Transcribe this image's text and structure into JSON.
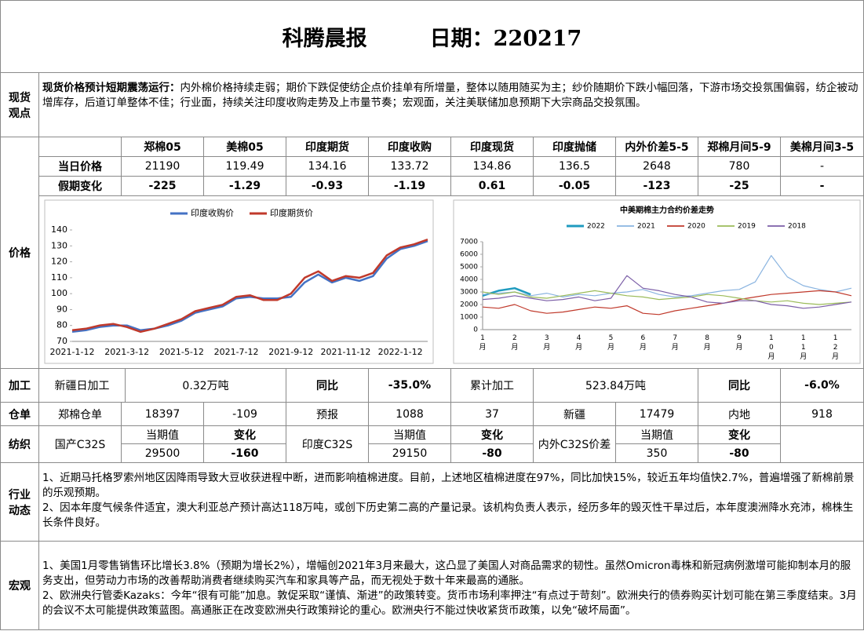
{
  "header": {
    "title": "科腾晨报",
    "date": "日期：220217"
  },
  "spot": {
    "label": "现货观点",
    "heading": "现货价格预计短期震荡运行：",
    "text": "内外棉价格持续走弱；期价下跌促使纺企点价挂单有所增量，整体以随用随买为主；纱价随期价下跌小幅回落，下游市场交投氛围偏弱，纺企被动增库存，后道订单整体不佳；行业面，持续关注印度收购走势及上市量节奏；宏观面，关注美联储加息预期下大宗商品交投氛围。"
  },
  "price_table": {
    "label": "价格",
    "columns": [
      "郑棉05",
      "美棉05",
      "印度期货",
      "印度收购",
      "印度现货",
      "印度抛储",
      "内外价差5-5",
      "郑棉月间5-9",
      "美棉月间3-5"
    ],
    "rows": [
      {
        "name": "当日价格",
        "cells": [
          "21190",
          "119.49",
          "134.16",
          "133.72",
          "134.86",
          "136.5",
          "2648",
          "780",
          "-"
        ]
      },
      {
        "name": "假期变化",
        "cells": [
          "-225",
          "-1.29",
          "-0.93",
          "-1.19",
          "0.61",
          "-0.05",
          "-123",
          "-25",
          "-"
        ]
      }
    ]
  },
  "chart_data": [
    {
      "type": "line",
      "categories": [
        "2021-1-12",
        null,
        null,
        null,
        "2021-3-12",
        null,
        null,
        null,
        "2021-5-12",
        null,
        null,
        null,
        "2021-7-12",
        null,
        null,
        null,
        "2021-9-12",
        null,
        null,
        null,
        "2021-11-12",
        null,
        null,
        null,
        "2022-1-12",
        null,
        null
      ],
      "series": [
        {
          "name": "印度收购价",
          "color": "#4472c4",
          "values": [
            76,
            77,
            79,
            80,
            80,
            77,
            78,
            80,
            83,
            88,
            90,
            92,
            97,
            98,
            97,
            97,
            98,
            107,
            112,
            107,
            110,
            108,
            111,
            122,
            128,
            130,
            133
          ]
        },
        {
          "name": "印度期货价",
          "color": "#c0392b",
          "values": [
            77,
            78,
            80,
            81,
            79,
            76,
            78,
            81,
            84,
            89,
            91,
            93,
            98,
            99,
            96,
            96,
            100,
            110,
            114,
            108,
            111,
            110,
            113,
            124,
            129,
            131,
            134
          ]
        }
      ],
      "ylim": [
        70,
        140
      ],
      "yticks": [
        70,
        80,
        90,
        100,
        110,
        120,
        130,
        140
      ],
      "grid": false
    },
    {
      "type": "line",
      "title": "中美期棉主力合约价差走势",
      "categories": [
        "1月",
        null,
        "2月",
        null,
        "3月",
        null,
        "4月",
        null,
        "5月",
        null,
        "6月",
        null,
        "7月",
        null,
        "8月",
        null,
        "9月",
        null,
        "10月",
        null,
        "11月",
        null,
        "12月",
        null
      ],
      "series": [
        {
          "name": "2022",
          "color": "#1f9bbf",
          "values": [
            2700,
            3100,
            3300,
            2800,
            null,
            null,
            null,
            null,
            null,
            null,
            null,
            null,
            null,
            null,
            null,
            null,
            null,
            null,
            null,
            null,
            null,
            null,
            null,
            null
          ]
        },
        {
          "name": "2021",
          "color": "#8ab4e0",
          "values": [
            2800,
            2900,
            3000,
            2700,
            2900,
            2600,
            2800,
            2700,
            2900,
            3000,
            3200,
            2800,
            2600,
            2700,
            2900,
            3100,
            3200,
            3800,
            5900,
            4200,
            3500,
            3200,
            3000,
            3300
          ]
        },
        {
          "name": "2020",
          "color": "#c0392b",
          "values": [
            1800,
            1700,
            2000,
            1500,
            1300,
            1400,
            1600,
            1800,
            1700,
            1900,
            1300,
            1200,
            1500,
            1700,
            1900,
            2100,
            2400,
            2600,
            2800,
            2900,
            3000,
            3100,
            3000,
            2700
          ]
        },
        {
          "name": "2019",
          "color": "#9bbb59",
          "values": [
            3000,
            2800,
            3000,
            2600,
            2500,
            2700,
            2900,
            3100,
            2900,
            2700,
            2600,
            2400,
            2500,
            2600,
            2800,
            2700,
            2500,
            2300,
            2200,
            2300,
            2100,
            2000,
            2100,
            2200
          ]
        },
        {
          "name": "2018",
          "color": "#7b5ea7",
          "values": [
            2400,
            2500,
            2700,
            2500,
            2300,
            2400,
            2600,
            2300,
            2500,
            4300,
            3300,
            3100,
            2800,
            2600,
            2200,
            2100,
            2300,
            2300,
            2000,
            1900,
            1700,
            1800,
            2000,
            2200
          ]
        }
      ],
      "ylim": [
        0,
        7000
      ],
      "yticks": [
        0,
        1000,
        2000,
        3000,
        4000,
        5000,
        6000,
        7000
      ],
      "grid": false
    }
  ],
  "processing": {
    "label": "加工",
    "cells": [
      "新疆日加工",
      "0.32万吨",
      "同比",
      "-35.0%",
      "累计加工",
      "523.84万吨",
      "同比",
      "-6.0%"
    ]
  },
  "warehouse": {
    "label": "仓单",
    "cells": [
      "郑棉仓单",
      "18397",
      "-109",
      "预报",
      "1088",
      "37",
      "新疆",
      "17479",
      "内地",
      "918"
    ]
  },
  "textile": {
    "label": "纺织",
    "groups": [
      {
        "name": "国产C32S",
        "cur_label": "当期值",
        "chg_label": "变化",
        "cur": "29500",
        "chg": "-160"
      },
      {
        "name": "印度C32S",
        "cur_label": "当期值",
        "chg_label": "变化",
        "cur": "29150",
        "chg": "-80"
      },
      {
        "name": "内外C32S价差",
        "cur_label": "当期值",
        "chg_label": "变化",
        "cur": "350",
        "chg": "-80"
      }
    ]
  },
  "industry": {
    "label": "行业动态",
    "paragraphs": [
      "1、近期马托格罗索州地区因降雨导致大豆收获进程中断，进而影响植棉进度。目前，上述地区植棉进度在97%，同比加快15%，较近五年均值快2.7%，普遍增强了新棉前景的乐观预期。",
      "2、因本年度气候条件适宜，澳大利亚总产预计高达118万吨，或创下历史第二高的产量记录。该机构负责人表示，经历多年的毁灭性干旱过后，本年度澳洲降水充沛，棉株生长条件良好。"
    ]
  },
  "macro": {
    "label": "宏观",
    "paragraphs": [
      "1、美国1月零售销售环比增长3.8%（预期为增长2%），增幅创2021年3月来最大，这凸显了美国人对商品需求的韧性。虽然Omicron毒株和新冠病例激增可能抑制本月的服务支出，但劳动力市场的改善帮助消费者继续购买汽车和家具等产品，而无视处于数十年来最高的通胀。",
      "2、欧洲央行管委Kazaks：今年“很有可能”加息。敦促采取“谨慎、渐进”的政策转变。货币市场利率押注“有点过于苛刻”。欧洲央行的债券购买计划可能在第三季度结束。3月的会议不太可能提供政策蓝图。高通胀正在改变欧洲央行政策辩论的重心。欧洲央行不能过快收紧货币政策，以免“破坏局面”。"
    ]
  }
}
